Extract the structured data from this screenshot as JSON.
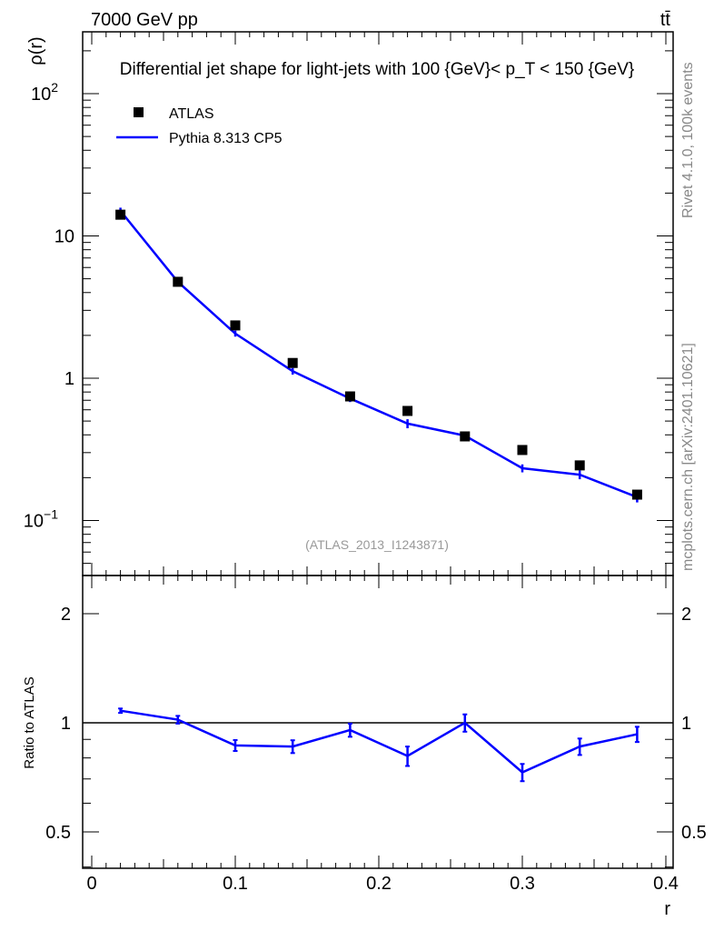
{
  "header": {
    "left": "7000 GeV pp",
    "right": "tt̄"
  },
  "side_texts": {
    "rivet": "Rivet 4.1.0,  100k events",
    "mcplots": "mcplots.cern.ch [arXiv:2401.10621]"
  },
  "colors": {
    "data": "#000000",
    "mc": "#0000ff"
  },
  "chart_data": [
    {
      "type": "scatter",
      "title": "Differential jet shape for light-jets with 100 {GeV}< p_T < 150 {GeV}",
      "ylabel": "ρ(r)",
      "xlabel": "r",
      "yscale": "log",
      "ylim": [
        0.041,
        270
      ],
      "xlim": [
        -0.006,
        0.406
      ],
      "yticks": [
        {
          "v": 100,
          "label": "10",
          "sup": "2"
        },
        {
          "v": 10,
          "label": "10",
          "sup": ""
        },
        {
          "v": 1,
          "label": "1",
          "sup": ""
        },
        {
          "v": 0.1,
          "label": "10",
          "sup": "−1"
        }
      ],
      "watermark": "(ATLAS_2013_I1243871)",
      "legend_position": "top-left",
      "x": [
        0.02,
        0.06,
        0.1,
        0.14,
        0.18,
        0.22,
        0.26,
        0.3,
        0.34,
        0.38
      ],
      "series": [
        {
          "name": "ATLAS",
          "style": "markers",
          "values": [
            14.1,
            4.76,
            2.35,
            1.28,
            0.745,
            0.589,
            0.39,
            0.313,
            0.244,
            0.152
          ]
        },
        {
          "name": "Pythia 8.313 CP5",
          "style": "line",
          "values": [
            15.0,
            4.76,
            2.06,
            1.12,
            0.72,
            0.48,
            0.395,
            0.233,
            0.21,
            0.146
          ],
          "errors": [
            0.8,
            0.15,
            0.1,
            0.06,
            0.04,
            0.035,
            0.025,
            0.015,
            0.015,
            0.012
          ]
        }
      ]
    },
    {
      "type": "line",
      "ylabel": "Ratio to ATLAS",
      "xlabel": "r",
      "yscale": "log",
      "ylim": [
        0.397,
        2.55
      ],
      "yticks": [
        {
          "v": 2,
          "label": "2"
        },
        {
          "v": 1,
          "label": "1"
        },
        {
          "v": 0.5,
          "label": "0.5"
        }
      ],
      "xticks": [
        0,
        0.1,
        0.2,
        0.3,
        0.4
      ],
      "xtick_labels": [
        "0",
        "0.1",
        "0.2",
        "0.3",
        "0.4"
      ],
      "x": [
        0.02,
        0.06,
        0.1,
        0.14,
        0.18,
        0.22,
        0.26,
        0.3,
        0.34,
        0.38
      ],
      "series": [
        {
          "name": "Pythia 8.313 CP5 / ATLAS",
          "values": [
            1.08,
            1.02,
            0.866,
            0.86,
            0.955,
            0.81,
            1.0,
            0.73,
            0.86,
            0.93
          ],
          "errors": [
            0.015,
            0.025,
            0.03,
            0.035,
            0.04,
            0.05,
            0.055,
            0.04,
            0.045,
            0.045
          ]
        }
      ]
    }
  ]
}
